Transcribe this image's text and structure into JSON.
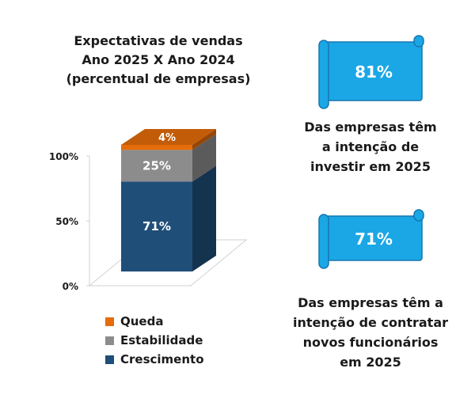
{
  "chart_data": {
    "type": "bar",
    "stacked": true,
    "style": "3d",
    "title": "Expectativas de vendas\nAno 2025 X Ano 2024\n(percentual de empresas)",
    "title_lines": [
      "Expectativas de vendas",
      "Ano 2025 X Ano 2024",
      "(percentual de empresas)"
    ],
    "ylim": [
      0,
      100
    ],
    "y_ticks": [
      "0%",
      "50%",
      "100%"
    ],
    "grid": false,
    "legend_position": "bottom",
    "series": [
      {
        "name": "Crescimento",
        "values": [
          71
        ],
        "label": "71%",
        "color": "#1f4e79"
      },
      {
        "name": "Estabilidade",
        "values": [
          25
        ],
        "label": "25%",
        "color": "#8c8c8c"
      },
      {
        "name": "Queda",
        "values": [
          4
        ],
        "label": "4%",
        "color": "#e46c0a"
      }
    ],
    "legend_order": [
      "Queda",
      "Estabilidade",
      "Crescimento"
    ]
  },
  "stats": [
    {
      "value": "81%",
      "caption_lines": [
        "Das empresas têm",
        "a intenção de",
        "investir em 2025"
      ],
      "color": "#1ba7e6"
    },
    {
      "value": "71%",
      "caption_lines": [
        "Das empresas têm a",
        "intenção de contratar",
        "novos funcionários",
        "em 2025"
      ],
      "color": "#1ba7e6"
    }
  ]
}
